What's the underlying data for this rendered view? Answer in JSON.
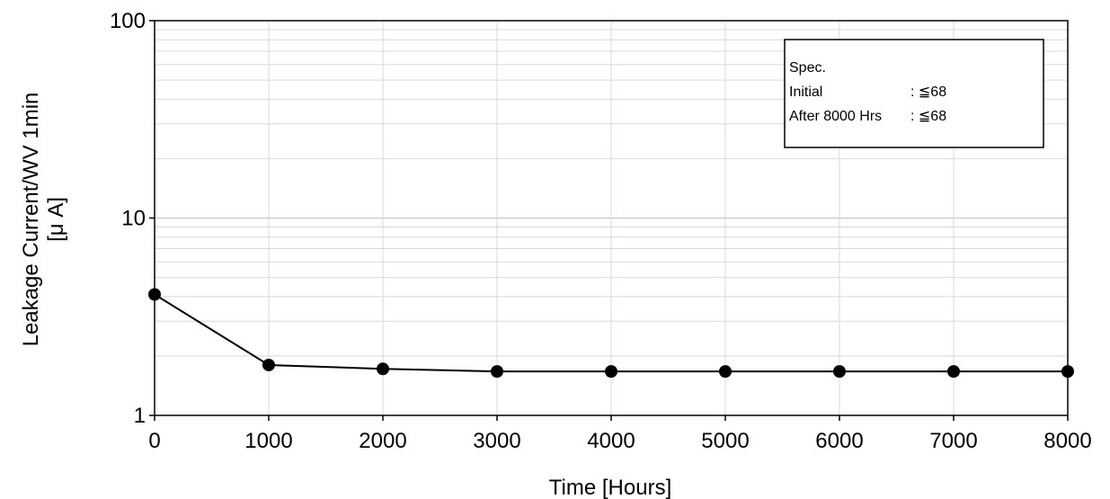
{
  "chart_data": {
    "type": "line",
    "xlabel": "Time [Hours]",
    "ylabel_line1": "Leakage Current/WV 1min",
    "ylabel_line2": "[μ A]",
    "x_scale": "linear",
    "y_scale": "log",
    "xlim": [
      0,
      8000
    ],
    "ylim": [
      1,
      100
    ],
    "x_ticks": [
      0,
      1000,
      2000,
      3000,
      4000,
      5000,
      6000,
      7000,
      8000
    ],
    "y_ticks": [
      1,
      10,
      100
    ],
    "x_tick_labels": [
      "0",
      "1000",
      "2000",
      "3000",
      "4000",
      "5000",
      "6000",
      "7000",
      "8000"
    ],
    "y_tick_labels": [
      "1",
      "10",
      "100"
    ],
    "grid": true,
    "series": [
      {
        "x": [
          0,
          1000,
          2000,
          3000,
          4000,
          5000,
          6000,
          7000,
          8000
        ],
        "y": [
          4.1,
          1.8,
          1.72,
          1.67,
          1.67,
          1.67,
          1.67,
          1.67,
          1.67
        ],
        "color": "#000000",
        "marker": "circle"
      }
    ],
    "legend": "none",
    "annotation": {
      "placement": "top-right",
      "lines": [
        {
          "label": "Spec.",
          "value": ""
        },
        {
          "label": "Initial",
          "value": ": ≦68"
        },
        {
          "label": "After 8000 Hrs",
          "value": ": ≦68"
        }
      ]
    }
  }
}
